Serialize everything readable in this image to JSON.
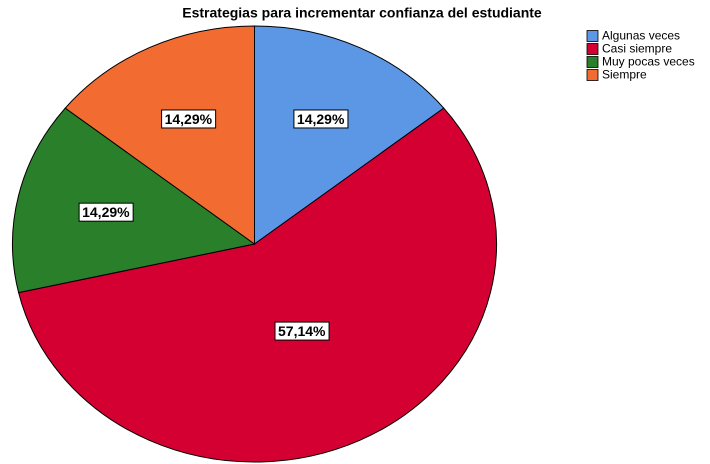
{
  "chart_data": {
    "type": "pie",
    "title": "Estrategias para incrementar confianza del estudiante",
    "categories": [
      "Algunas veces",
      "Casi siempre",
      "Muy pocas veces",
      "Siempre"
    ],
    "values": [
      14.29,
      57.14,
      14.29,
      14.29
    ],
    "value_labels": [
      "14,29%",
      "57,14%",
      "14,29%",
      "14,29%"
    ],
    "colors": [
      "#5b97e4",
      "#d50032",
      "#2a7f2a",
      "#f26b30"
    ],
    "legend": "top-right"
  }
}
